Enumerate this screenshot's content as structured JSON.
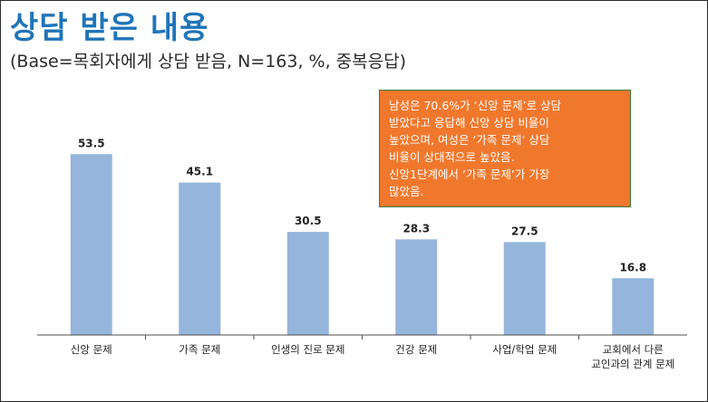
{
  "header": {
    "title": "상담 받은 내용",
    "subtitle": "(Base=목회자에게 상담 받음, N=163, %, 중복응답)"
  },
  "callout": {
    "lines": [
      "남성은 70.6%가 ‘신앙 문제’로 상담",
      "받았다고 응답해 신앙 상담 비율이",
      "높았으며, 여성은 ‘가족 문제’ 상담",
      "비율이 상대적으로 높았음.",
      "신앙1단계에서 ‘가족 문제’가 가장",
      "많았음."
    ],
    "background": "#f0782d"
  },
  "colors": {
    "bar": "#95b5dc",
    "title": "#1f74b8",
    "axis": "#4d4d4d"
  },
  "chart_data": {
    "type": "bar",
    "categories": [
      "신앙 문제",
      "가족 문제",
      "인생의 진로 문제",
      "건강 문제",
      "사업/학업 문제",
      "교회에서 다른 교인과의 관계 문제"
    ],
    "category_lines": [
      [
        "신앙 문제"
      ],
      [
        "가족 문제"
      ],
      [
        "인생의 진로 문제"
      ],
      [
        "건강 문제"
      ],
      [
        "사업/학업 문제"
      ],
      [
        "교회에서 다른",
        "교인과의 관계 문제"
      ]
    ],
    "values": [
      53.5,
      45.1,
      30.5,
      28.3,
      27.5,
      16.8
    ],
    "value_labels": [
      "53.5",
      "45.1",
      "30.5",
      "28.3",
      "27.5",
      "16.8"
    ],
    "ylim": [
      0,
      60
    ],
    "grid": false
  }
}
